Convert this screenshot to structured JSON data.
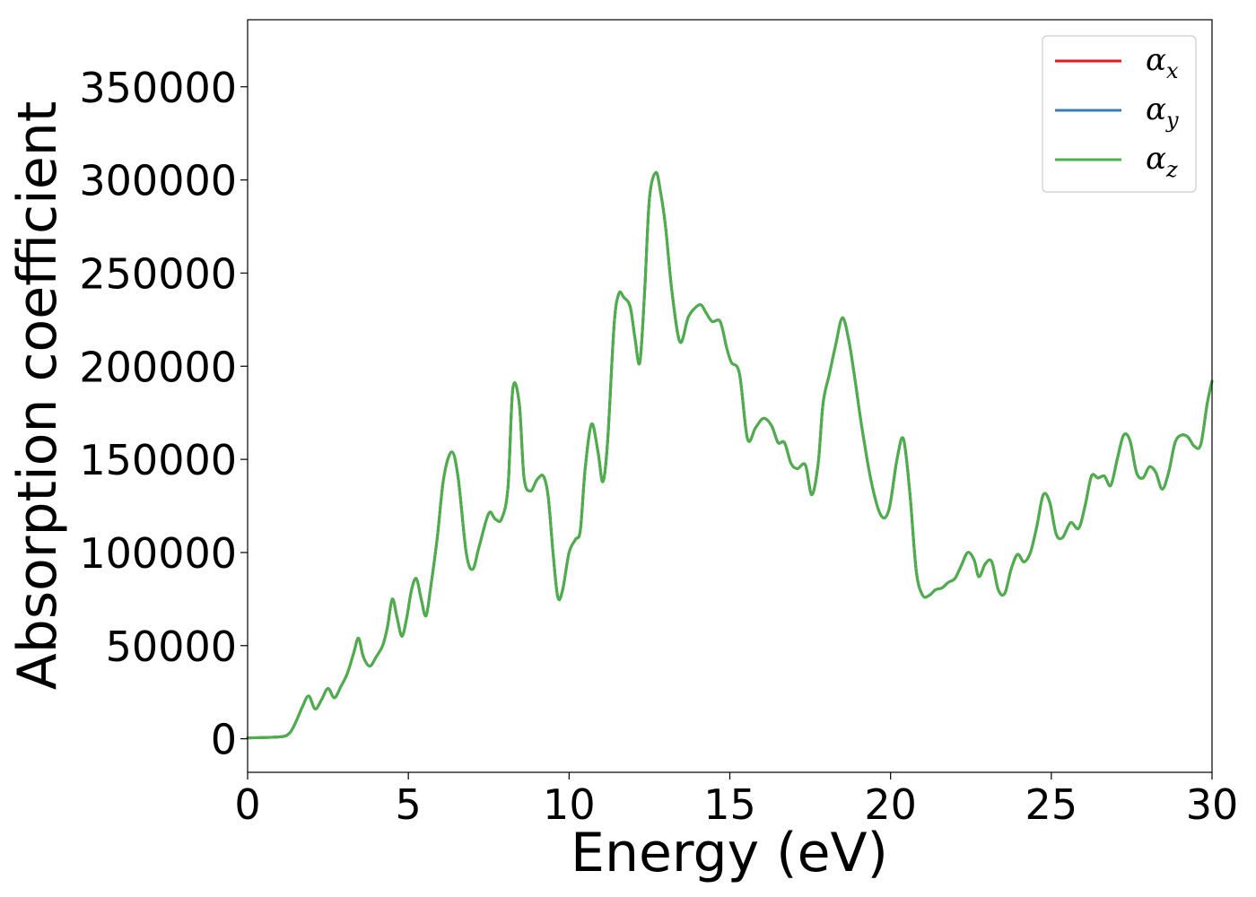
{
  "chart_data": {
    "type": "line",
    "xlabel": "Energy (eV)",
    "ylabel": "Absorption coefficient",
    "xlim": [
      0,
      30
    ],
    "ylim": [
      -18000,
      386000
    ],
    "xticks": [
      0,
      5,
      10,
      15,
      20,
      25,
      30
    ],
    "xtick_labels": [
      "0",
      "5",
      "10",
      "15",
      "20",
      "25",
      "30"
    ],
    "yticks": [
      0,
      50000,
      100000,
      150000,
      200000,
      250000,
      300000,
      350000
    ],
    "ytick_labels": [
      "0",
      "50000",
      "100000",
      "150000",
      "200000",
      "250000",
      "300000",
      "350000"
    ],
    "grid": false,
    "legend_position": "top-right",
    "x": [
      0,
      1.0,
      1.3,
      1.5,
      1.7,
      1.9,
      2.1,
      2.3,
      2.5,
      2.7,
      2.9,
      3.1,
      3.3,
      3.45,
      3.6,
      3.8,
      4.0,
      4.2,
      4.35,
      4.5,
      4.65,
      4.8,
      4.95,
      5.1,
      5.25,
      5.4,
      5.55,
      5.7,
      5.9,
      6.1,
      6.35,
      6.55,
      6.8,
      7.0,
      7.2,
      7.5,
      7.7,
      7.9,
      8.1,
      8.25,
      8.45,
      8.6,
      8.8,
      9.0,
      9.2,
      9.35,
      9.5,
      9.65,
      9.8,
      10.0,
      10.2,
      10.35,
      10.5,
      10.7,
      10.9,
      11.05,
      11.2,
      11.4,
      11.55,
      11.7,
      11.9,
      12.05,
      12.2,
      12.35,
      12.5,
      12.7,
      12.85,
      13.0,
      13.2,
      13.45,
      13.7,
      13.9,
      14.1,
      14.25,
      14.45,
      14.7,
      14.9,
      15.05,
      15.3,
      15.55,
      15.8,
      16.05,
      16.3,
      16.5,
      16.7,
      16.9,
      17.1,
      17.35,
      17.55,
      17.75,
      17.9,
      18.1,
      18.3,
      18.5,
      18.7,
      18.9,
      19.1,
      19.4,
      19.7,
      19.95,
      20.2,
      20.4,
      20.6,
      20.8,
      21.0,
      21.2,
      21.4,
      21.6,
      21.8,
      22.0,
      22.2,
      22.4,
      22.6,
      22.75,
      22.95,
      23.15,
      23.35,
      23.55,
      23.75,
      23.95,
      24.15,
      24.35,
      24.55,
      24.75,
      24.95,
      25.15,
      25.35,
      25.6,
      25.85,
      26.05,
      26.25,
      26.45,
      26.65,
      26.85,
      27.05,
      27.25,
      27.45,
      27.65,
      27.85,
      28.05,
      28.25,
      28.45,
      28.65,
      28.85,
      29.05,
      29.25,
      29.45,
      29.65,
      29.85,
      30.0
    ],
    "series": [
      {
        "name": "α_x",
        "color": "#e41a1c",
        "values": [
          500,
          1000,
          3000,
          9000,
          17000,
          23000,
          16000,
          21000,
          27000,
          22000,
          28000,
          35000,
          46000,
          54000,
          44000,
          39000,
          44000,
          50000,
          60000,
          75000,
          65000,
          55000,
          65000,
          80000,
          86000,
          75000,
          66000,
          82000,
          108000,
          140000,
          154000,
          140000,
          100000,
          91000,
          103000,
          121000,
          118000,
          118000,
          135000,
          188000,
          180000,
          140000,
          133000,
          139000,
          141000,
          130000,
          100000,
          76000,
          80000,
          100000,
          107000,
          112000,
          145000,
          169000,
          154000,
          138000,
          160000,
          222000,
          239000,
          237000,
          232000,
          215000,
          202000,
          240000,
          290000,
          304000,
          293000,
          275000,
          240000,
          213000,
          226000,
          231000,
          233000,
          229000,
          224000,
          224000,
          210000,
          202000,
          196000,
          161000,
          167000,
          172000,
          168000,
          159000,
          159000,
          148000,
          145000,
          147000,
          131000,
          148000,
          180000,
          196000,
          212000,
          226000,
          214000,
          192000,
          168000,
          138000,
          120000,
          123000,
          150000,
          161000,
          132000,
          90000,
          77000,
          77000,
          80000,
          81000,
          84000,
          86000,
          93000,
          100000,
          96000,
          87000,
          94000,
          95000,
          80000,
          78000,
          91000,
          99000,
          95000,
          100000,
          114000,
          131000,
          127000,
          110000,
          108000,
          116000,
          113000,
          125000,
          141000,
          140000,
          141000,
          136000,
          150000,
          163000,
          160000,
          143000,
          140000,
          146000,
          143000,
          134000,
          143000,
          159000,
          163000,
          162000,
          157000,
          158000,
          180000,
          192000
        ]
      },
      {
        "name": "α_y",
        "color": "#377eb8",
        "values": [
          500,
          1000,
          3000,
          9000,
          17000,
          23000,
          16000,
          21000,
          27000,
          22000,
          28000,
          35000,
          46000,
          54000,
          44000,
          39000,
          44000,
          50000,
          60000,
          75000,
          65000,
          55000,
          65000,
          80000,
          86000,
          75000,
          66000,
          82000,
          108000,
          140000,
          154000,
          140000,
          100000,
          91000,
          103000,
          121000,
          118000,
          118000,
          135000,
          188000,
          180000,
          140000,
          133000,
          139000,
          141000,
          130000,
          100000,
          76000,
          80000,
          100000,
          107000,
          112000,
          145000,
          169000,
          154000,
          138000,
          160000,
          222000,
          239000,
          237000,
          232000,
          215000,
          202000,
          240000,
          290000,
          304000,
          293000,
          275000,
          240000,
          213000,
          226000,
          231000,
          233000,
          229000,
          224000,
          224000,
          210000,
          202000,
          196000,
          161000,
          167000,
          172000,
          168000,
          159000,
          159000,
          148000,
          145000,
          147000,
          131000,
          148000,
          180000,
          196000,
          212000,
          226000,
          214000,
          192000,
          168000,
          138000,
          120000,
          123000,
          150000,
          161000,
          132000,
          90000,
          77000,
          77000,
          80000,
          81000,
          84000,
          86000,
          93000,
          100000,
          96000,
          87000,
          94000,
          95000,
          80000,
          78000,
          91000,
          99000,
          95000,
          100000,
          114000,
          131000,
          127000,
          110000,
          108000,
          116000,
          113000,
          125000,
          141000,
          140000,
          141000,
          136000,
          150000,
          163000,
          160000,
          143000,
          140000,
          146000,
          143000,
          134000,
          143000,
          159000,
          163000,
          162000,
          157000,
          158000,
          180000,
          192000
        ]
      },
      {
        "name": "α_z",
        "color": "#4daf4a",
        "values": [
          500,
          1000,
          3000,
          9000,
          17000,
          23000,
          16000,
          21000,
          27000,
          22000,
          28000,
          35000,
          46000,
          54000,
          44000,
          39000,
          44000,
          50000,
          60000,
          75000,
          65000,
          55000,
          65000,
          80000,
          86000,
          75000,
          66000,
          82000,
          108000,
          140000,
          154000,
          140000,
          100000,
          91000,
          103000,
          121000,
          118000,
          118000,
          135000,
          188000,
          180000,
          140000,
          133000,
          139000,
          141000,
          130000,
          100000,
          76000,
          80000,
          100000,
          107000,
          112000,
          145000,
          169000,
          154000,
          138000,
          160000,
          222000,
          239000,
          237000,
          232000,
          215000,
          202000,
          240000,
          290000,
          304000,
          293000,
          275000,
          240000,
          213000,
          226000,
          231000,
          233000,
          229000,
          224000,
          224000,
          210000,
          202000,
          196000,
          161000,
          167000,
          172000,
          168000,
          159000,
          159000,
          148000,
          145000,
          147000,
          131000,
          148000,
          180000,
          196000,
          212000,
          226000,
          214000,
          192000,
          168000,
          138000,
          120000,
          123000,
          150000,
          161000,
          132000,
          90000,
          77000,
          77000,
          80000,
          81000,
          84000,
          86000,
          93000,
          100000,
          96000,
          87000,
          94000,
          95000,
          80000,
          78000,
          91000,
          99000,
          95000,
          100000,
          114000,
          131000,
          127000,
          110000,
          108000,
          116000,
          113000,
          125000,
          141000,
          140000,
          141000,
          136000,
          150000,
          163000,
          160000,
          143000,
          140000,
          146000,
          143000,
          134000,
          143000,
          159000,
          163000,
          162000,
          157000,
          158000,
          180000,
          192000
        ]
      }
    ],
    "legend": [
      {
        "symbol": "α",
        "subscript": "x",
        "color": "#e41a1c"
      },
      {
        "symbol": "α",
        "subscript": "y",
        "color": "#377eb8"
      },
      {
        "symbol": "α",
        "subscript": "z",
        "color": "#4daf4a"
      }
    ]
  }
}
